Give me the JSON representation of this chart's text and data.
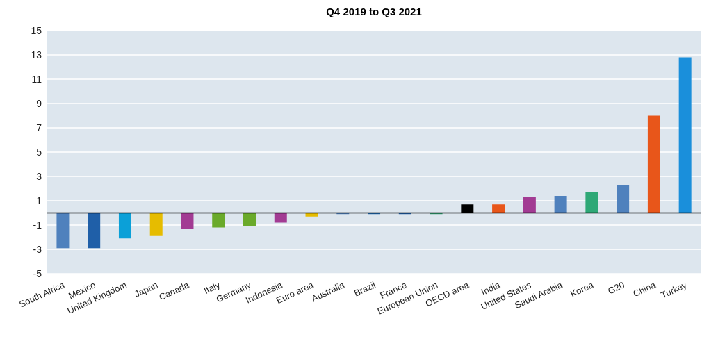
{
  "chart_data": {
    "type": "bar",
    "title": "Q4 2019 to Q3 2021",
    "categories": [
      "South Africa",
      "Mexico",
      "United Kingdom",
      "Japan",
      "Canada",
      "Italy",
      "Germany",
      "Indonesia",
      "Euro area",
      "Australia",
      "Brazil",
      "France",
      "European Union",
      "OECD area",
      "India",
      "United States",
      "Saudi Arabia",
      "Korea",
      "G20",
      "China",
      "Turkey"
    ],
    "values": [
      -2.9,
      -2.9,
      -2.1,
      -1.9,
      -1.3,
      -1.2,
      -1.1,
      -0.8,
      -0.3,
      -0.1,
      -0.1,
      -0.1,
      -0.1,
      0.7,
      0.7,
      1.3,
      1.4,
      1.7,
      2.3,
      8.0,
      12.8
    ],
    "colors": [
      "#4f81bd",
      "#1f5fa8",
      "#0ba0d8",
      "#e6bc00",
      "#a23b93",
      "#6aaa2a",
      "#6aaa2a",
      "#a23b93",
      "#e6bc00",
      "#4f81bd",
      "#1f6ab0",
      "#1f5fa8",
      "#2f9e6e",
      "#000000",
      "#e8561a",
      "#a23b93",
      "#4f81bd",
      "#2ea876",
      "#4f81bd",
      "#e8561a",
      "#1a8fdb"
    ],
    "ylim": [
      -5,
      15
    ],
    "yticks": [
      -5,
      -3,
      -1,
      1,
      3,
      5,
      7,
      9,
      11,
      13,
      15
    ],
    "grid": "y"
  }
}
